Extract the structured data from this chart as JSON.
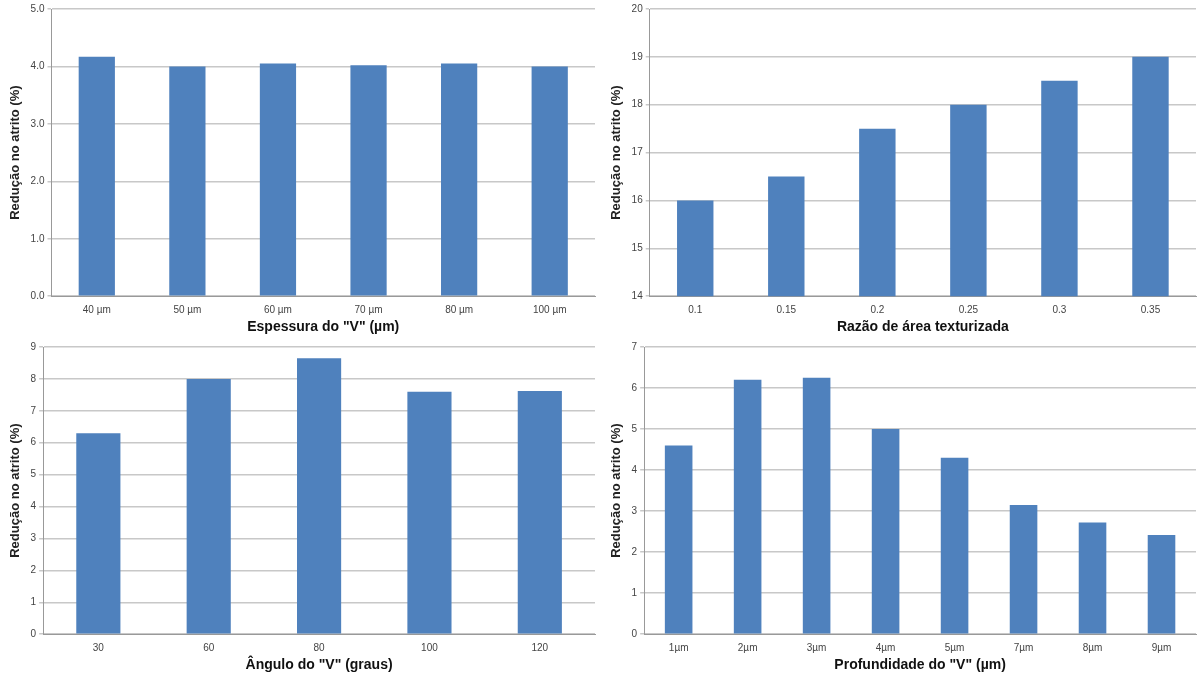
{
  "chart_data": [
    {
      "type": "bar",
      "xlabel": "Espessura do \"V\" (µm)",
      "ylabel": "Redução no atrito (%)",
      "categories": [
        "40 µm",
        "50 µm",
        "60 µm",
        "70 µm",
        "80 µm",
        "100 µm"
      ],
      "values": [
        4.17,
        4.0,
        4.05,
        4.02,
        4.05,
        4.0
      ],
      "color": "#4f81bd",
      "ylim": [
        0,
        5
      ],
      "yticks": [
        {
          "value": 0,
          "label": "0.0"
        },
        {
          "value": 1,
          "label": "1.0"
        },
        {
          "value": 2,
          "label": "2.0"
        },
        {
          "value": 3,
          "label": "3.0"
        },
        {
          "value": 4,
          "label": "4.0"
        },
        {
          "value": 5,
          "label": "5.0"
        }
      ],
      "grid": "y"
    },
    {
      "type": "bar",
      "xlabel": "Razão de área texturizada",
      "ylabel": "Redução no atrito (%)",
      "categories": [
        "0.1",
        "0.15",
        "0.2",
        "0.25",
        "0.3",
        "0.35"
      ],
      "values": [
        16,
        16.5,
        17.5,
        18,
        18.5,
        19
      ],
      "color": "#4f81bd",
      "ylim": [
        14,
        20
      ],
      "yticks": [
        14,
        15,
        16,
        17,
        18,
        19,
        20
      ],
      "grid": "y"
    },
    {
      "type": "bar",
      "xlabel": "Ângulo do \"V\" (graus)",
      "ylabel": "Redução no atrito (%)",
      "categories": [
        "30",
        "60",
        "80",
        "100",
        "120"
      ],
      "values": [
        6.3,
        8.0,
        8.65,
        7.6,
        7.62
      ],
      "color": "#4f81bd",
      "ylim": [
        0,
        9
      ],
      "yticks": [
        0,
        1,
        2,
        3,
        4,
        5,
        6,
        7,
        8,
        9
      ],
      "grid": "y"
    },
    {
      "type": "bar",
      "xlabel": "Profundidade do \"V\" (µm)",
      "ylabel": "Redução no atrito (%)",
      "categories": [
        "1µm",
        "2µm",
        "3µm",
        "4µm",
        "5µm",
        "7µm",
        "8µm",
        "9µm"
      ],
      "values": [
        4.6,
        6.2,
        6.25,
        5.0,
        4.3,
        3.15,
        2.72,
        2.42
      ],
      "color": "#4f81bd",
      "ylim": [
        0,
        7
      ],
      "yticks": [
        0,
        1,
        2,
        3,
        4,
        5,
        6,
        7
      ],
      "grid": "y"
    }
  ]
}
